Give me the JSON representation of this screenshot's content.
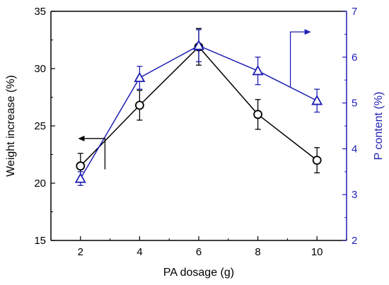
{
  "chart_data": {
    "type": "line",
    "title": "",
    "xlabel": "PA dosage (g)",
    "ylabel_left": "Weight increase (%)",
    "ylabel_right": "P content (%)",
    "x": [
      2,
      4,
      6,
      8,
      10
    ],
    "x_ticks": [
      "2",
      "4",
      "6",
      "8",
      "10"
    ],
    "xlim": [
      1,
      11
    ],
    "ylim_left": [
      15,
      35
    ],
    "ylim_right": [
      2,
      7
    ],
    "y_ticks_left": [
      "15",
      "20",
      "25",
      "30",
      "35"
    ],
    "y_ticks_right": [
      "2",
      "3",
      "4",
      "5",
      "6",
      "7"
    ],
    "grid": false,
    "legend": "none",
    "series": [
      {
        "axis": "left",
        "marker": "circle",
        "color": "#000000",
        "values": [
          21.5,
          26.8,
          31.9,
          26.0,
          22.0
        ],
        "errors": [
          1.1,
          1.3,
          1.6,
          1.3,
          1.1
        ]
      },
      {
        "axis": "right",
        "marker": "triangle",
        "color": "#1f1fb4",
        "values": [
          3.35,
          5.55,
          6.25,
          5.7,
          5.05
        ],
        "errors": [
          0.15,
          0.25,
          0.35,
          0.3,
          0.25
        ]
      }
    ],
    "annotations": [
      {
        "type": "arrow",
        "points_to": "left",
        "series": 0
      },
      {
        "type": "arrow",
        "points_to": "right",
        "series": 1
      }
    ]
  }
}
